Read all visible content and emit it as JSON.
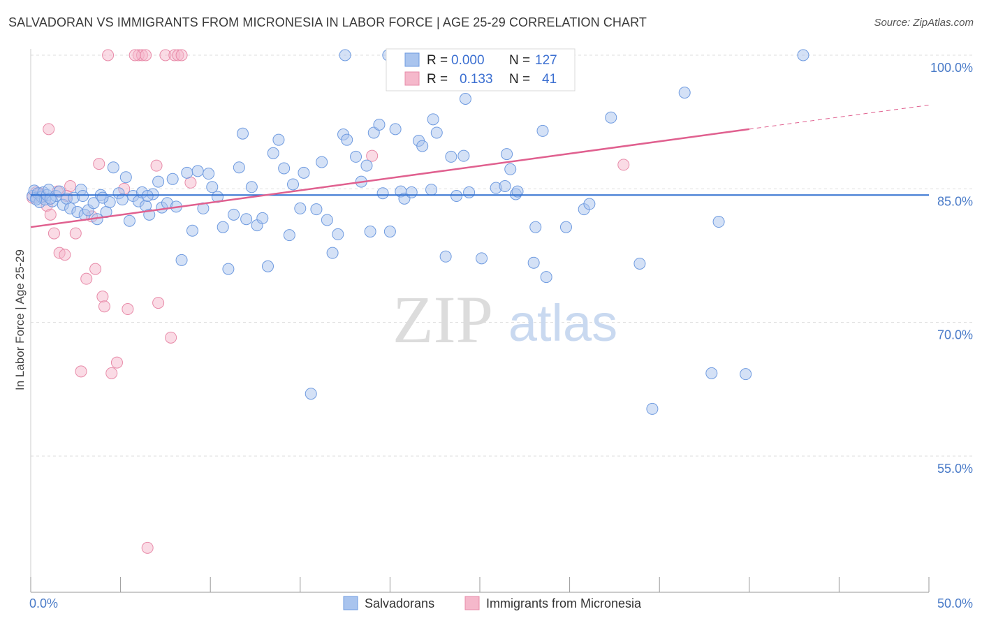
{
  "header": {
    "title": "SALVADORAN VS IMMIGRANTS FROM MICRONESIA IN LABOR FORCE | AGE 25-29 CORRELATION CHART",
    "source": "Source: ZipAtlas.com"
  },
  "watermark": {
    "zip": "ZIP",
    "atlas": "atlas"
  },
  "chart_data": {
    "type": "scatter",
    "title": "SALVADORAN VS IMMIGRANTS FROM MICRONESIA IN LABOR FORCE | AGE 25-29 CORRELATION CHART",
    "xlabel": "",
    "ylabel": "In Labor Force | Age 25-29",
    "xlim": [
      0,
      50
    ],
    "ylim": [
      41,
      101.5
    ],
    "x_tick_labels": {
      "min": "0.0%",
      "max": "50.0%"
    },
    "y_ticks": [
      {
        "value": 100,
        "label": "100.0%"
      },
      {
        "value": 85,
        "label": "85.0%"
      },
      {
        "value": 70,
        "label": "70.0%"
      },
      {
        "value": 55,
        "label": "55.0%"
      }
    ],
    "legend": {
      "rows": [
        {
          "r_label": "R =",
          "r_value": "0.000",
          "n_label": "N =",
          "n_value": "127"
        },
        {
          "r_label": "R =",
          "r_value": "0.133",
          "n_label": "N =",
          "n_value": "41"
        }
      ]
    },
    "colors": {
      "blue_fill": "#a9c4ee",
      "blue_stroke": "#6f9be0",
      "blue_line": "#2f6fd0",
      "pink_fill": "#f5b8cb",
      "pink_stroke": "#e88ba9",
      "pink_line": "#e0608f",
      "grid": "#dddddd",
      "axis": "#999999"
    },
    "series": [
      {
        "name": "Salvadorans",
        "trend": {
          "x0": 0,
          "y0": 84.3,
          "x1": 50,
          "y1": 84.3
        },
        "points": [
          [
            0.1,
            84.2
          ],
          [
            0.2,
            84.8
          ],
          [
            0.3,
            84.0
          ],
          [
            0.4,
            84.5
          ],
          [
            0.5,
            83.5
          ],
          [
            0.6,
            84.1
          ],
          [
            0.7,
            84.6
          ],
          [
            0.8,
            83.8
          ],
          [
            0.9,
            84.3
          ],
          [
            1.0,
            84.9
          ],
          [
            1.2,
            83.6
          ],
          [
            1.4,
            84.2
          ],
          [
            1.6,
            84.7
          ],
          [
            1.8,
            83.2
          ],
          [
            2.0,
            83.9
          ],
          [
            2.2,
            82.8
          ],
          [
            2.4,
            84.0
          ],
          [
            2.6,
            82.4
          ],
          [
            2.8,
            84.9
          ],
          [
            3.0,
            82.1
          ],
          [
            3.2,
            82.6
          ],
          [
            3.5,
            83.4
          ],
          [
            3.7,
            81.6
          ],
          [
            3.9,
            84.3
          ],
          [
            4.2,
            82.4
          ],
          [
            4.4,
            83.5
          ],
          [
            4.6,
            87.4
          ],
          [
            4.9,
            84.5
          ],
          [
            5.1,
            83.8
          ],
          [
            5.3,
            86.3
          ],
          [
            5.5,
            81.4
          ],
          [
            5.7,
            84.2
          ],
          [
            6.0,
            83.6
          ],
          [
            6.2,
            84.6
          ],
          [
            6.4,
            83.1
          ],
          [
            6.6,
            82.1
          ],
          [
            6.8,
            84.4
          ],
          [
            7.1,
            85.8
          ],
          [
            7.3,
            82.9
          ],
          [
            7.6,
            83.4
          ],
          [
            7.9,
            86.1
          ],
          [
            8.1,
            83.0
          ],
          [
            8.4,
            77.0
          ],
          [
            8.7,
            86.8
          ],
          [
            9.0,
            80.3
          ],
          [
            9.3,
            87.0
          ],
          [
            9.6,
            82.8
          ],
          [
            9.9,
            86.7
          ],
          [
            10.1,
            85.2
          ],
          [
            10.4,
            84.1
          ],
          [
            10.7,
            80.7
          ],
          [
            11.0,
            76.0
          ],
          [
            11.3,
            82.1
          ],
          [
            11.6,
            87.4
          ],
          [
            11.8,
            91.2
          ],
          [
            12.0,
            81.6
          ],
          [
            12.3,
            85.2
          ],
          [
            12.6,
            80.9
          ],
          [
            12.9,
            81.7
          ],
          [
            13.2,
            76.3
          ],
          [
            13.5,
            89.0
          ],
          [
            13.8,
            90.5
          ],
          [
            14.1,
            87.3
          ],
          [
            14.4,
            79.8
          ],
          [
            14.6,
            85.5
          ],
          [
            15.0,
            82.8
          ],
          [
            15.2,
            86.8
          ],
          [
            15.6,
            62.0
          ],
          [
            15.9,
            82.7
          ],
          [
            16.2,
            88.0
          ],
          [
            16.5,
            81.5
          ],
          [
            16.8,
            77.8
          ],
          [
            17.1,
            79.9
          ],
          [
            17.4,
            91.1
          ],
          [
            17.6,
            90.5
          ],
          [
            18.1,
            88.6
          ],
          [
            18.4,
            85.8
          ],
          [
            18.7,
            87.6
          ],
          [
            18.9,
            80.2
          ],
          [
            19.1,
            91.3
          ],
          [
            19.4,
            92.2
          ],
          [
            19.6,
            84.5
          ],
          [
            19.9,
            100.0
          ],
          [
            20.0,
            80.2
          ],
          [
            20.3,
            91.7
          ],
          [
            20.6,
            84.7
          ],
          [
            20.8,
            83.9
          ],
          [
            21.2,
            84.6
          ],
          [
            21.6,
            90.4
          ],
          [
            21.8,
            89.8
          ],
          [
            22.3,
            84.9
          ],
          [
            22.4,
            92.8
          ],
          [
            22.6,
            91.3
          ],
          [
            23.1,
            77.4
          ],
          [
            23.4,
            88.6
          ],
          [
            23.7,
            84.2
          ],
          [
            24.1,
            88.7
          ],
          [
            24.2,
            95.1
          ],
          [
            24.4,
            84.6
          ],
          [
            25.1,
            77.2
          ],
          [
            25.9,
            85.1
          ],
          [
            26.4,
            85.3
          ],
          [
            26.5,
            88.9
          ],
          [
            26.7,
            87.2
          ],
          [
            27.0,
            84.4
          ],
          [
            27.1,
            84.7
          ],
          [
            28.0,
            76.7
          ],
          [
            28.1,
            80.7
          ],
          [
            28.5,
            91.5
          ],
          [
            28.7,
            75.1
          ],
          [
            29.8,
            80.7
          ],
          [
            30.8,
            82.7
          ],
          [
            31.1,
            83.3
          ],
          [
            32.3,
            93.0
          ],
          [
            33.9,
            76.6
          ],
          [
            34.6,
            60.3
          ],
          [
            36.4,
            95.8
          ],
          [
            37.9,
            64.3
          ],
          [
            38.3,
            81.3
          ],
          [
            39.8,
            64.2
          ],
          [
            43.0,
            100.0
          ],
          [
            17.5,
            100.0
          ],
          [
            0.3,
            83.8
          ],
          [
            1.1,
            83.9
          ],
          [
            2.9,
            84.2
          ],
          [
            4.0,
            84.0
          ],
          [
            6.5,
            84.2
          ]
        ]
      },
      {
        "name": "Immigrants from Micronesia",
        "trend": {
          "x0": 0,
          "y0": 80.7,
          "x1": 40,
          "y1": 91.7,
          "dash_x1": 50,
          "dash_y1": 94.4
        },
        "points": [
          [
            0.1,
            84.0
          ],
          [
            0.3,
            84.6
          ],
          [
            0.6,
            84.2
          ],
          [
            0.9,
            83.1
          ],
          [
            1.0,
            91.7
          ],
          [
            1.1,
            82.1
          ],
          [
            1.3,
            80.0
          ],
          [
            1.6,
            77.8
          ],
          [
            1.9,
            77.6
          ],
          [
            2.2,
            85.3
          ],
          [
            2.5,
            80.0
          ],
          [
            2.8,
            64.5
          ],
          [
            3.1,
            74.9
          ],
          [
            3.4,
            81.9
          ],
          [
            3.6,
            76.0
          ],
          [
            3.8,
            87.8
          ],
          [
            4.0,
            72.9
          ],
          [
            4.1,
            71.8
          ],
          [
            4.3,
            100.0
          ],
          [
            4.5,
            64.3
          ],
          [
            4.8,
            65.5
          ],
          [
            5.2,
            85.0
          ],
          [
            5.4,
            71.5
          ],
          [
            6.0,
            100.0
          ],
          [
            6.2,
            100.0
          ],
          [
            6.4,
            100.0
          ],
          [
            6.5,
            44.7
          ],
          [
            7.0,
            87.6
          ],
          [
            7.1,
            72.2
          ],
          [
            7.5,
            100.0
          ],
          [
            7.8,
            68.3
          ],
          [
            8.0,
            100.0
          ],
          [
            8.2,
            100.0
          ],
          [
            8.4,
            100.0
          ],
          [
            8.9,
            85.7
          ],
          [
            19.0,
            88.7
          ],
          [
            33.0,
            87.7
          ],
          [
            0.5,
            84.5
          ],
          [
            1.5,
            84.7
          ],
          [
            2.0,
            84.2
          ],
          [
            5.8,
            100.0
          ]
        ]
      }
    ],
    "bottom_legend": [
      "Salvadorans",
      "Immigrants from Micronesia"
    ]
  }
}
